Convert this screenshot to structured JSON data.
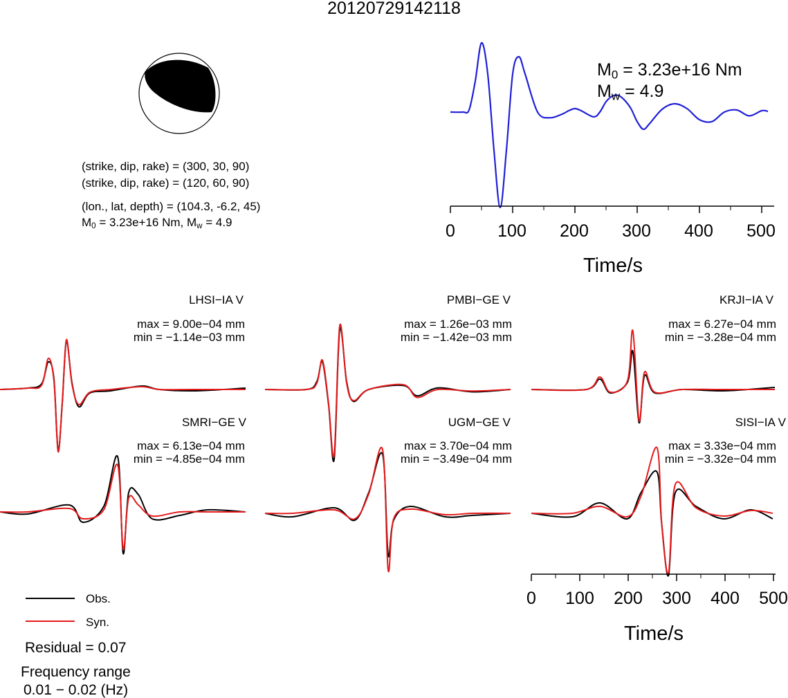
{
  "title": "20120729142118",
  "solution": {
    "nodal_plane_1": "(strike, dip, rake) = (300, 30, 90)",
    "nodal_plane_2": "(strike, dip, rake) = (120, 60, 90)",
    "location": "(lon., lat, depth) = (104.3, -6.2, 45)",
    "m0_text": "= 3.23e+16 Nm, M",
    "mw_text": "= 4.9",
    "m_label": "M",
    "m0_sub": "0",
    "mw_sub": "w"
  },
  "stf_annotation": {
    "m0_label": "M",
    "m0_sub": "0",
    "m0_value": "= 3.23e+16 Nm",
    "mw_label": "M",
    "mw_sub": "w",
    "mw_value": "= 4.9"
  },
  "stations": [
    {
      "name": "LHSI−IA V",
      "max": "max = 9.00e−04 mm",
      "min": "min = −1.14e−03 mm"
    },
    {
      "name": "PMBI−GE V",
      "max": "max = 1.26e−03 mm",
      "min": "min = −1.42e−03 mm"
    },
    {
      "name": "KRJI−IA V",
      "max": "max = 6.27e−04 mm",
      "min": "min = −3.28e−04 mm"
    },
    {
      "name": "SMRI−GE V",
      "max": "max = 6.13e−04 mm",
      "min": "min = −4.85e−04 mm"
    },
    {
      "name": "UGM−GE V",
      "max": "max = 3.70e−04 mm",
      "min": "min = −3.49e−04 mm"
    },
    {
      "name": "SISI−IA V",
      "max": "max = 3.33e−04 mm",
      "min": "min = −3.32e−04 mm"
    }
  ],
  "legend": {
    "obs": "Obs.",
    "syn": "Syn."
  },
  "summary": {
    "residual": "Residual = 0.07",
    "freq_title": "Frequency range",
    "freq_value": "0.01 − 0.02 (Hz)"
  },
  "colors": {
    "obs": "#000000",
    "syn": "#e41a1c",
    "stf": "#1f1fd6",
    "beachball_fill": "#000000"
  },
  "chart_data": [
    {
      "type": "line",
      "name": "source time function",
      "xlabel": "Time/s",
      "xlim": [
        0,
        510
      ],
      "xticks": [
        0,
        100,
        200,
        300,
        400,
        500
      ],
      "series": [
        {
          "x": [
            0,
            20,
            30,
            40,
            50,
            60,
            70,
            80,
            90,
            100,
            110,
            120,
            140,
            160,
            180,
            190,
            200,
            210,
            230,
            240,
            250,
            260,
            270,
            280,
            290,
            300,
            310,
            320,
            340,
            360,
            380,
            400,
            420,
            440,
            460,
            480,
            500,
            510
          ],
          "y": [
            0,
            0.0,
            0.03,
            0.45,
            1.0,
            0.55,
            -0.4,
            -1.0,
            -0.4,
            0.55,
            0.8,
            0.55,
            0.0,
            -0.06,
            -0.02,
            0.02,
            0.05,
            0.02,
            -0.05,
            0.0,
            0.15,
            0.23,
            0.24,
            0.17,
            0.05,
            -0.1,
            -0.18,
            -0.12,
            0.04,
            0.12,
            0.05,
            -0.08,
            -0.1,
            0.0,
            0.03,
            -0.04,
            0.02,
            0.01
          ]
        }
      ]
    },
    {
      "type": "line",
      "name": "waveforms",
      "xlabel": "Time/s",
      "xlim": [
        0,
        510
      ],
      "xticks": [
        0,
        100,
        200,
        300,
        400,
        500
      ],
      "series": [
        {
          "name": "Obs."
        },
        {
          "name": "Syn."
        }
      ]
    }
  ]
}
